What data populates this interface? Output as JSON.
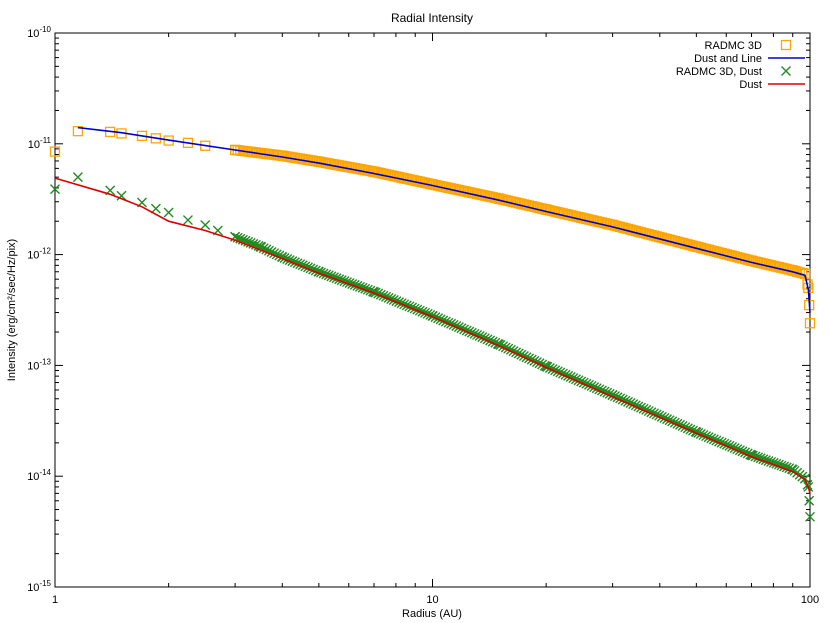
{
  "chart_data": {
    "type": "line",
    "title": "Radial Intensity",
    "xlabel": "Radius (AU)",
    "ylabel": "Intensity (erg/cm²/sec/Hz/pix)",
    "xscale": "log",
    "yscale": "log",
    "xlim": [
      1,
      100
    ],
    "ylim": [
      1e-15,
      1e-10
    ],
    "grid": false,
    "legend_position": "top-right",
    "x_ticks": [
      {
        "value": 1,
        "label": "1"
      },
      {
        "value": 10,
        "label": "10"
      },
      {
        "value": 100,
        "label": "100"
      }
    ],
    "y_ticks": [
      {
        "value": 1e-15,
        "mant": "10",
        "exp": "-15"
      },
      {
        "value": 1e-14,
        "mant": "10",
        "exp": "-14"
      },
      {
        "value": 1e-13,
        "mant": "10",
        "exp": "-13"
      },
      {
        "value": 1e-12,
        "mant": "10",
        "exp": "-12"
      },
      {
        "value": 1e-11,
        "mant": "10",
        "exp": "-11"
      },
      {
        "value": 1e-10,
        "mant": "10",
        "exp": "-10"
      }
    ],
    "series": [
      {
        "name": "RADMC 3D",
        "style": "open-square",
        "color": "#FFA500",
        "x": [
          1.0,
          1.15,
          1.4,
          1.5,
          1.7,
          1.85,
          2.0,
          2.25,
          2.5,
          3.0,
          4.0,
          5.0,
          7.0,
          10.0,
          15.0,
          20.0,
          30.0,
          50.0,
          70.0,
          90.0,
          97.0,
          99.0,
          99.5,
          100.0
        ],
        "y": [
          8.5e-12,
          1.3e-11,
          1.28e-11,
          1.24e-11,
          1.18e-11,
          1.12e-11,
          1.07e-11,
          1.02e-11,
          9.6e-12,
          8.8e-12,
          7.8e-12,
          6.9e-12,
          5.6e-12,
          4.3e-12,
          3.2e-12,
          2.55e-12,
          1.85e-12,
          1.18e-12,
          8.8e-13,
          7.2e-13,
          6.7e-13,
          5e-13,
          3.5e-13,
          2.4e-13
        ]
      },
      {
        "name": "Dust and Line",
        "style": "line",
        "color": "#0000CC",
        "x": [
          1.15,
          1.5,
          2.0,
          3.0,
          4.0,
          5.0,
          7.0,
          10.0,
          15.0,
          20.0,
          30.0,
          50.0,
          70.0,
          90.0,
          97.0,
          99.0,
          100.0
        ],
        "y": [
          1.4e-11,
          1.26e-11,
          1.08e-11,
          8.8e-12,
          7.6e-12,
          6.7e-12,
          5.4e-12,
          4.2e-12,
          3.1e-12,
          2.45e-12,
          1.78e-12,
          1.14e-12,
          8.5e-13,
          7e-13,
          6.5e-13,
          4.8e-13,
          3e-13
        ]
      },
      {
        "name": "RADMC 3D, Dust",
        "style": "cross",
        "color": "#228B22",
        "x": [
          1.0,
          1.15,
          1.4,
          1.5,
          1.7,
          1.85,
          2.0,
          2.25,
          2.5,
          2.7,
          3.0,
          3.5,
          4.0,
          5.0,
          7.0,
          10.0,
          15.0,
          20.0,
          30.0,
          50.0,
          70.0,
          90.0,
          97.0,
          99.0,
          99.5,
          100.0
        ],
        "y": [
          3.9e-12,
          5e-12,
          3.8e-12,
          3.4e-12,
          2.95e-12,
          2.6e-12,
          2.4e-12,
          2.05e-12,
          1.85e-12,
          1.65e-12,
          1.45e-12,
          1.18e-12,
          9.5e-13,
          7e-13,
          4.6e-13,
          2.8e-13,
          1.55e-13,
          9.8e-14,
          5.4e-14,
          2.5e-14,
          1.55e-14,
          1.15e-14,
          9.5e-15,
          8e-15,
          6e-15,
          4.3e-15
        ]
      },
      {
        "name": "Dust",
        "style": "line",
        "color": "#DD0000",
        "x": [
          1.0,
          1.4,
          1.7,
          2.0,
          2.5,
          3.0,
          3.5,
          4.0,
          5.0,
          7.0,
          10.0,
          15.0,
          20.0,
          30.0,
          50.0,
          70.0,
          90.0,
          97.0,
          99.0,
          100.0
        ],
        "y": [
          4.9e-12,
          3.5e-12,
          2.7e-12,
          2e-12,
          1.65e-12,
          1.35e-12,
          1.1e-12,
          9.2e-13,
          6.8e-13,
          4.5e-13,
          2.75e-13,
          1.5e-13,
          9.6e-14,
          5.2e-14,
          2.45e-14,
          1.5e-14,
          1.1e-14,
          9.3e-15,
          8e-15,
          7e-15
        ]
      }
    ]
  }
}
